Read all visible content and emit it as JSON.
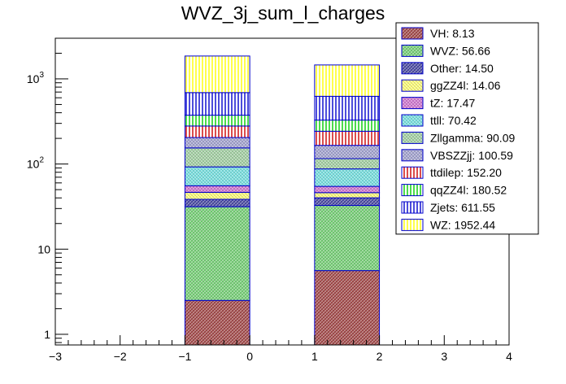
{
  "chart_data": {
    "type": "bar",
    "stacked": true,
    "log_y": true,
    "title": "WVZ_3j_sum_l_charges",
    "xlabel": "",
    "ylabel": "",
    "xlim": [
      -3,
      4
    ],
    "ylim": [
      0.75,
      3000
    ],
    "x_ticks": [
      -3,
      -2,
      -1,
      0,
      1,
      2,
      3,
      4
    ],
    "x_tick_labels": [
      "−3",
      "−2",
      "−1",
      "0",
      "1",
      "2",
      "3",
      "4"
    ],
    "y_ticks": [
      {
        "value": 1,
        "base": "1",
        "exp": ""
      },
      {
        "value": 10,
        "base": "10",
        "exp": ""
      },
      {
        "value": 100,
        "base": "10",
        "exp": "2"
      },
      {
        "value": 1000,
        "base": "10",
        "exp": "3"
      }
    ],
    "bins": [
      {
        "low": -1,
        "high": 0
      },
      {
        "low": 1,
        "high": 2
      }
    ],
    "series": [
      {
        "name": "VH",
        "total": "8.13",
        "values": [
          2.5,
          5.6
        ],
        "color": "#993333",
        "pattern": "crosshatch"
      },
      {
        "name": "WVZ",
        "total": "56.66",
        "values": [
          29.0,
          27.0
        ],
        "color": "#66cc66",
        "pattern": "crosshatch"
      },
      {
        "name": "Other",
        "total": "14.50",
        "values": [
          7.0,
          7.5
        ],
        "color": "#333399",
        "pattern": "crosshatch"
      },
      {
        "name": "ggZZ4l",
        "total": "14.06",
        "values": [
          8.0,
          6.0
        ],
        "color": "#ffff66",
        "pattern": "crosshatch"
      },
      {
        "name": "tZ",
        "total": "17.47",
        "values": [
          9.0,
          8.5
        ],
        "color": "#cc66cc",
        "pattern": "crosshatch"
      },
      {
        "name": "ttll",
        "total": "70.42",
        "values": [
          37.0,
          33.0
        ],
        "color": "#66dddd",
        "pattern": "crosshatch"
      },
      {
        "name": "Zllgamma",
        "total": "90.09",
        "values": [
          62.0,
          28.0
        ],
        "color": "#99cc99",
        "pattern": "crosshatch"
      },
      {
        "name": "VBSZZjj",
        "total": "100.59",
        "values": [
          50.0,
          50.0
        ],
        "color": "#9999cc",
        "pattern": "crosshatch"
      },
      {
        "name": "ttdilep",
        "total": "152.20",
        "values": [
          75.0,
          77.0
        ],
        "color": "#cc0000",
        "pattern": "vertical"
      },
      {
        "name": "qqZZ4l",
        "total": "180.52",
        "values": [
          95.0,
          85.5
        ],
        "color": "#00cc00",
        "pattern": "vertical"
      },
      {
        "name": "Zjets",
        "total": "611.55",
        "values": [
          315.0,
          296.0
        ],
        "color": "#0000cc",
        "pattern": "vertical"
      },
      {
        "name": "WZ",
        "total": "1952.44",
        "values": [
          1165.0,
          832.0
        ],
        "color": "#ffff00",
        "pattern": "vertical"
      }
    ],
    "legend": {
      "placement": "top-right",
      "entries": [
        {
          "label": "VH: 8.13",
          "series": 0
        },
        {
          "label": "WVZ: 56.66",
          "series": 1
        },
        {
          "label": "Other: 14.50",
          "series": 2
        },
        {
          "label": "ggZZ4l: 14.06",
          "series": 3
        },
        {
          "label": "tZ: 17.47",
          "series": 4
        },
        {
          "label": "ttll: 70.42",
          "series": 5
        },
        {
          "label": "Zllgamma: 90.09",
          "series": 6
        },
        {
          "label": "VBSZZjj: 100.59",
          "series": 7
        },
        {
          "label": "ttdilep: 152.20",
          "series": 8
        },
        {
          "label": "qqZZ4l: 180.52",
          "series": 9
        },
        {
          "label": "Zjets: 611.55",
          "series": 10
        },
        {
          "label": "WZ: 1952.44",
          "series": 11
        }
      ]
    }
  }
}
